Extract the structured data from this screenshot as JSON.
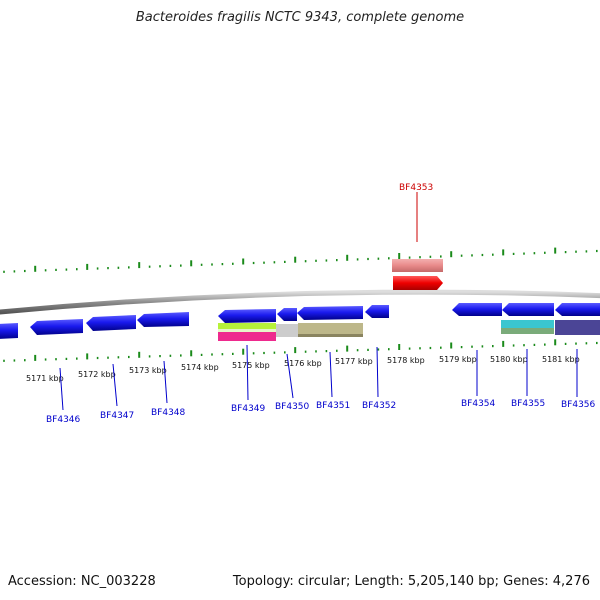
{
  "title": "Bacteroides fragilis NCTC 9343, complete genome",
  "footer": {
    "accession": "Accession: NC_003228",
    "summary": "Topology: circular; Length: 5,205,140 bp; Genes: 4,276"
  },
  "colors": {
    "backbone": "#8a8a8a",
    "tick": "#1a8a1a",
    "gene": "#1a1aee",
    "gene_label": "#0000cc",
    "highlight_label": "#cc0000",
    "highlight_gene": "#ee1111",
    "highlight_gene_faded": "#e88a8a"
  },
  "ruler": {
    "unit": "kbp",
    "kbp_labels": [
      {
        "kbp": 5171,
        "label": "5171 kbp"
      },
      {
        "kbp": 5172,
        "label": "5172 kbp"
      },
      {
        "kbp": 5173,
        "label": "5173 kbp"
      },
      {
        "kbp": 5174,
        "label": "5174 kbp"
      },
      {
        "kbp": 5175,
        "label": "5175 kbp"
      },
      {
        "kbp": 5176,
        "label": "5176 kbp"
      },
      {
        "kbp": 5177,
        "label": "5177 kbp"
      },
      {
        "kbp": 5178,
        "label": "5178 kbp"
      },
      {
        "kbp": 5179,
        "label": "5179 kbp"
      },
      {
        "kbp": 5180,
        "label": "5180 kbp"
      },
      {
        "kbp": 5181,
        "label": "5181 kbp"
      }
    ]
  },
  "genes": [
    {
      "locus": "BF4346",
      "strand": "-",
      "kind": "plain"
    },
    {
      "locus": "BF4347",
      "strand": "-",
      "kind": "plain"
    },
    {
      "locus": "BF4348",
      "strand": "-",
      "kind": "plain"
    },
    {
      "locus": "BF4349",
      "strand": "-",
      "kind": "plain"
    },
    {
      "locus": "BF4350",
      "strand": "-",
      "kind": "plain"
    },
    {
      "locus": "BF4351",
      "strand": "-",
      "kind": "plain"
    },
    {
      "locus": "BF4352",
      "strand": "-",
      "kind": "plain"
    },
    {
      "locus": "BF4353",
      "strand": "+",
      "kind": "highlight"
    },
    {
      "locus": "BF4354",
      "strand": "-",
      "kind": "plain"
    },
    {
      "locus": "BF4355",
      "strand": "-",
      "kind": "plain"
    },
    {
      "locus": "BF4356",
      "strand": "-",
      "kind": "plain"
    }
  ]
}
